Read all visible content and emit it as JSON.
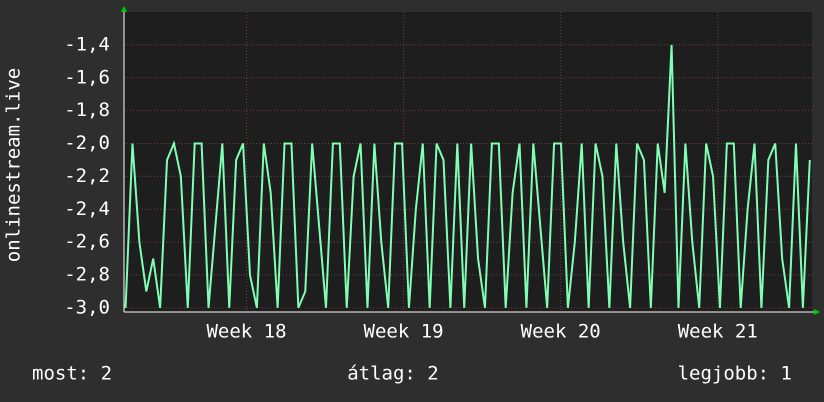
{
  "chart_data": {
    "type": "line",
    "ylabel": "onlinestream.live",
    "xlim": [
      17.22,
      21.6
    ],
    "ylim": [
      -3.025,
      -1.2
    ],
    "xticks": [
      {
        "value": 18,
        "label": "Week 18"
      },
      {
        "value": 19,
        "label": "Week 19"
      },
      {
        "value": 20,
        "label": "Week 20"
      },
      {
        "value": 21,
        "label": "Week 21"
      }
    ],
    "yticks": [
      {
        "value": -3.0,
        "label": "-3,0"
      },
      {
        "value": -2.8,
        "label": "-2,8"
      },
      {
        "value": -2.6,
        "label": "-2,6"
      },
      {
        "value": -2.4,
        "label": "-2,4"
      },
      {
        "value": -2.2,
        "label": "-2,2"
      },
      {
        "value": -2.0,
        "label": "-2,0"
      },
      {
        "value": -1.8,
        "label": "-1,8"
      },
      {
        "value": -1.6,
        "label": "-1,6"
      },
      {
        "value": -1.4,
        "label": "-1,4"
      }
    ],
    "grid": true,
    "x": [
      17.23,
      17.274,
      17.318,
      17.362,
      17.406,
      17.45,
      17.494,
      17.538,
      17.582,
      17.626,
      17.67,
      17.714,
      17.758,
      17.802,
      17.846,
      17.89,
      17.934,
      17.978,
      18.022,
      18.066,
      18.11,
      18.154,
      18.198,
      18.242,
      18.286,
      18.33,
      18.374,
      18.418,
      18.462,
      18.506,
      18.55,
      18.594,
      18.638,
      18.682,
      18.726,
      18.77,
      18.814,
      18.858,
      18.902,
      18.946,
      18.99,
      19.034,
      19.078,
      19.122,
      19.166,
      19.21,
      19.254,
      19.298,
      19.342,
      19.386,
      19.43,
      19.474,
      19.518,
      19.562,
      19.606,
      19.65,
      19.694,
      19.738,
      19.782,
      19.826,
      19.87,
      19.914,
      19.958,
      20.002,
      20.046,
      20.09,
      20.134,
      20.178,
      20.222,
      20.266,
      20.31,
      20.354,
      20.398,
      20.442,
      20.486,
      20.53,
      20.574,
      20.618,
      20.662,
      20.706,
      20.75,
      20.794,
      20.838,
      20.882,
      20.926,
      20.97,
      21.014,
      21.058,
      21.102,
      21.146,
      21.19,
      21.234,
      21.278,
      21.322,
      21.366,
      21.41,
      21.454,
      21.498,
      21.542,
      21.586
    ],
    "series": [
      {
        "color": "#80ffb4",
        "values": [
          -3.0,
          -2.0,
          -2.6,
          -2.9,
          -2.7,
          -3.0,
          -2.1,
          -2.0,
          -2.2,
          -3.0,
          -2.0,
          -2.0,
          -3.0,
          -2.5,
          -2.0,
          -3.0,
          -2.1,
          -2.0,
          -2.8,
          -3.0,
          -2.0,
          -2.3,
          -3.0,
          -2.0,
          -2.0,
          -3.0,
          -2.9,
          -2.0,
          -2.5,
          -3.0,
          -2.0,
          -2.0,
          -3.0,
          -2.2,
          -2.0,
          -3.0,
          -2.0,
          -2.6,
          -3.0,
          -2.0,
          -2.0,
          -3.0,
          -2.4,
          -2.0,
          -3.0,
          -2.0,
          -2.1,
          -3.0,
          -2.0,
          -3.0,
          -2.0,
          -2.7,
          -3.0,
          -2.0,
          -2.0,
          -3.0,
          -2.3,
          -2.0,
          -3.0,
          -2.0,
          -2.5,
          -3.0,
          -2.0,
          -2.0,
          -3.0,
          -2.6,
          -2.0,
          -3.0,
          -2.0,
          -2.2,
          -3.0,
          -2.0,
          -2.6,
          -3.0,
          -2.0,
          -2.1,
          -3.0,
          -2.0,
          -2.3,
          -1.4,
          -3.0,
          -2.0,
          -2.6,
          -3.0,
          -2.0,
          -2.2,
          -3.0,
          -2.0,
          -2.0,
          -3.0,
          -2.4,
          -2.0,
          -3.0,
          -2.1,
          -2.0,
          -2.7,
          -3.0,
          -2.0,
          -3.0,
          -2.1
        ]
      }
    ],
    "annotations": [
      "most: 2",
      "átlag: 2",
      "legjobb: 1"
    ]
  }
}
